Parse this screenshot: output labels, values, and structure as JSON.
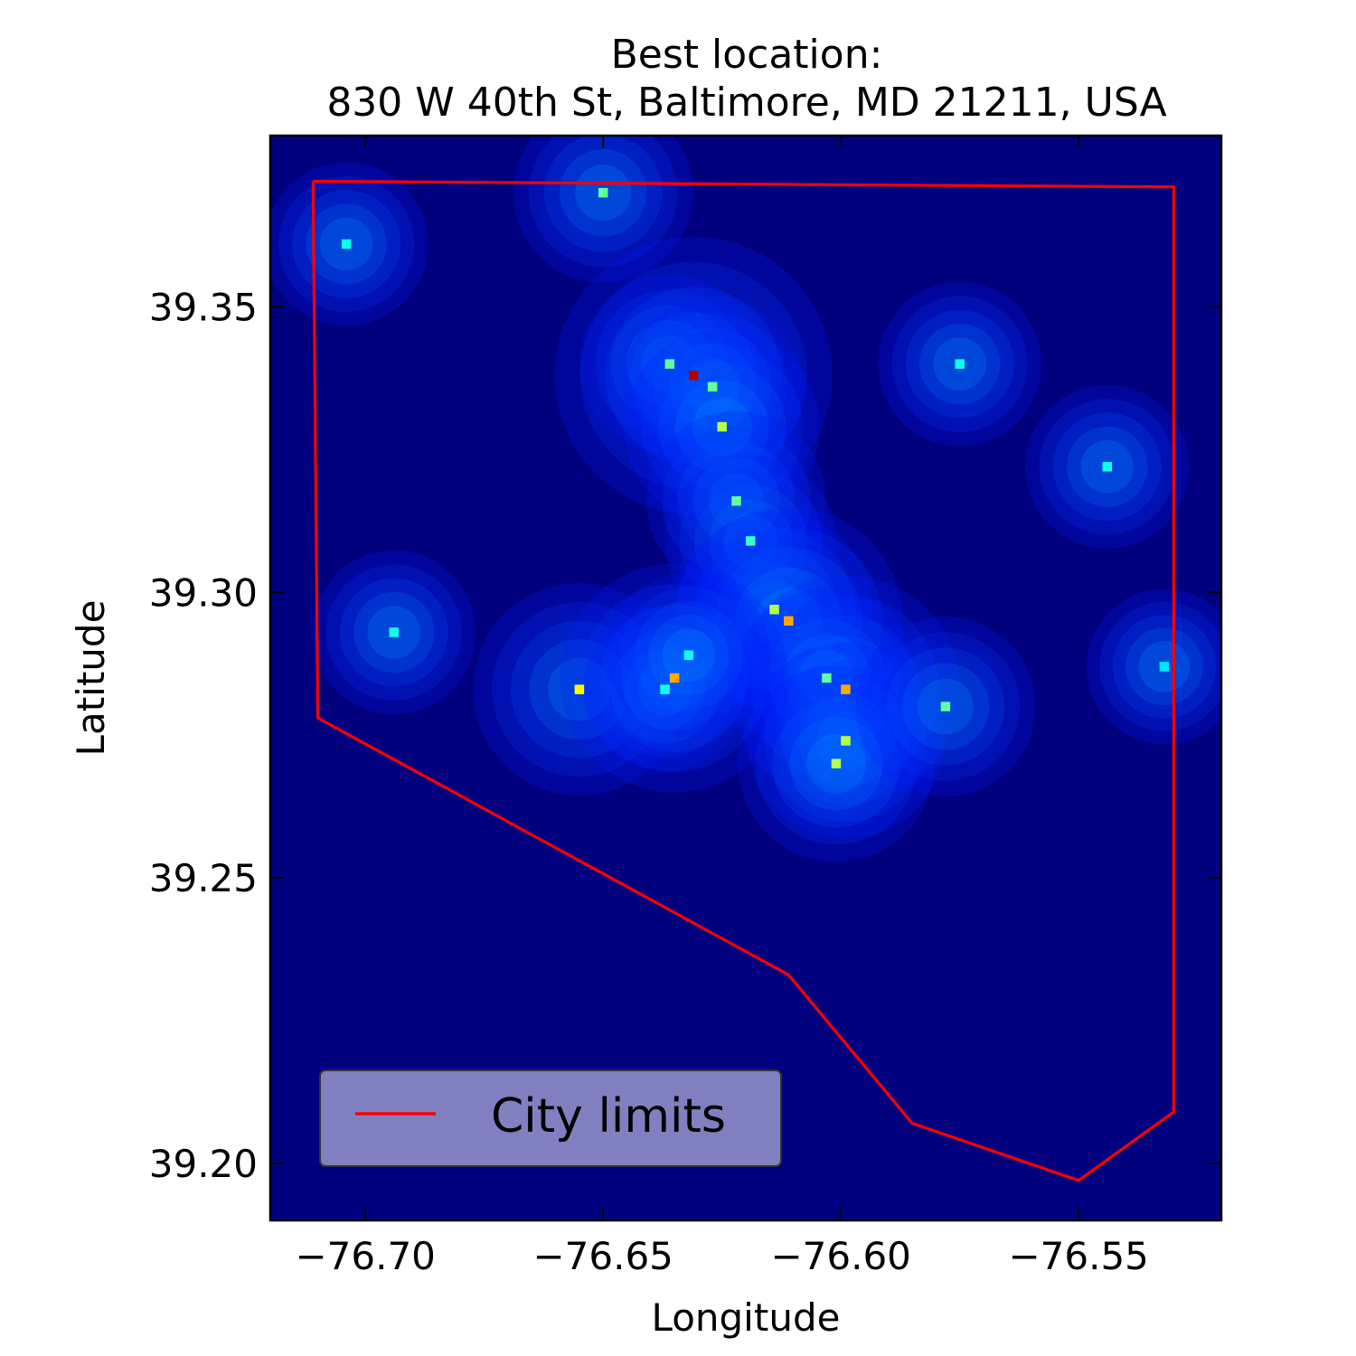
{
  "chart_data": {
    "type": "heatmap",
    "title_line1": "Best location:",
    "title_line2": "830 W 40th St, Baltimore, MD 21211, USA",
    "xlabel": "Longitude",
    "ylabel": "Latitude",
    "xlim": [
      -76.72,
      -76.52
    ],
    "ylim": [
      39.19,
      39.38
    ],
    "xticks": [
      {
        "value": -76.7,
        "label": "−76.70"
      },
      {
        "value": -76.65,
        "label": "−76.65"
      },
      {
        "value": -76.6,
        "label": "−76.60"
      },
      {
        "value": -76.55,
        "label": "−76.55"
      }
    ],
    "yticks": [
      {
        "value": 39.35,
        "label": "39.35"
      },
      {
        "value": 39.3,
        "label": "39.30"
      },
      {
        "value": 39.25,
        "label": "39.25"
      },
      {
        "value": 39.2,
        "label": "39.20"
      }
    ],
    "colormap": "jet",
    "background_color": "#00007f",
    "hotspots": [
      {
        "lon": -76.65,
        "lat": 39.37,
        "intensity": 0.4
      },
      {
        "lon": -76.704,
        "lat": 39.361,
        "intensity": 0.3
      },
      {
        "lon": -76.631,
        "lat": 39.338,
        "intensity": 1.0
      },
      {
        "lon": -76.636,
        "lat": 39.34,
        "intensity": 0.4
      },
      {
        "lon": -76.627,
        "lat": 39.336,
        "intensity": 0.4
      },
      {
        "lon": -76.625,
        "lat": 39.329,
        "intensity": 0.5
      },
      {
        "lon": -76.622,
        "lat": 39.316,
        "intensity": 0.4
      },
      {
        "lon": -76.619,
        "lat": 39.309,
        "intensity": 0.35
      },
      {
        "lon": -76.614,
        "lat": 39.297,
        "intensity": 0.5
      },
      {
        "lon": -76.611,
        "lat": 39.295,
        "intensity": 0.7
      },
      {
        "lon": -76.599,
        "lat": 39.283,
        "intensity": 0.7
      },
      {
        "lon": -76.603,
        "lat": 39.285,
        "intensity": 0.4
      },
      {
        "lon": -76.599,
        "lat": 39.274,
        "intensity": 0.5
      },
      {
        "lon": -76.601,
        "lat": 39.27,
        "intensity": 0.5
      },
      {
        "lon": -76.578,
        "lat": 39.28,
        "intensity": 0.4
      },
      {
        "lon": -76.655,
        "lat": 39.283,
        "intensity": 0.6
      },
      {
        "lon": -76.635,
        "lat": 39.285,
        "intensity": 0.7
      },
      {
        "lon": -76.637,
        "lat": 39.283,
        "intensity": 0.3
      },
      {
        "lon": -76.632,
        "lat": 39.289,
        "intensity": 0.3
      },
      {
        "lon": -76.694,
        "lat": 39.293,
        "intensity": 0.3
      },
      {
        "lon": -76.544,
        "lat": 39.322,
        "intensity": 0.3
      },
      {
        "lon": -76.575,
        "lat": 39.34,
        "intensity": 0.3
      },
      {
        "lon": -76.532,
        "lat": 39.287,
        "intensity": 0.25
      }
    ],
    "city_limits": {
      "label": "City limits",
      "color": "#ff0000",
      "lon": [
        -76.711,
        -76.53,
        -76.53,
        -76.55,
        -76.585,
        -76.611,
        -76.71,
        -76.711
      ],
      "lat": [
        39.372,
        39.371,
        39.209,
        39.197,
        39.207,
        39.233,
        39.278,
        39.372
      ]
    },
    "legend": {
      "position": "lower-left",
      "entries": [
        "City limits"
      ]
    },
    "grid": false
  }
}
